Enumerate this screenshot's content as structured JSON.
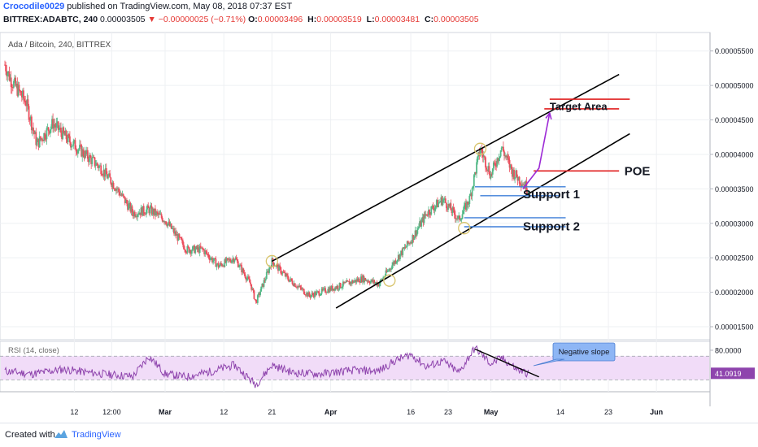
{
  "header": {
    "author": "Crocodile0029",
    "published": "published on TradingView.com, May 08, 2018 07:37 EST",
    "symbol": "BITTREX:ADABTC, 240",
    "last": "0.00003505",
    "change": "▼ −0.00000025 (−0.71%)",
    "open_label": "O:",
    "open": "0.00003496",
    "high_label": "H:",
    "high": "0.00003519",
    "low_label": "L:",
    "low": "0.00003481",
    "close_label": "C:",
    "close": "0.00003505"
  },
  "footer": {
    "created": "Created with",
    "brand": "TradingView"
  },
  "colors": {
    "up": "#53b987",
    "down": "#eb4d5c",
    "channel": "#000000",
    "support": "#3e7fd8",
    "target": "#e01f1f",
    "arrow": "#9d2ad6",
    "rsi_line": "#8e44ad",
    "rsi_band": "#f1dcf8",
    "grid": "#eef0f3",
    "callout": "#8eb6f5",
    "highlight_circle": "#d8c36a"
  },
  "chart_data": [
    {
      "type": "candlestick",
      "title": "Ada / Bitcoin, 240, BITTREX",
      "ylim": [
        1.5e-05,
        5.65e-05
      ],
      "x_range": [
        "2018-01-30",
        "2018-06-06"
      ],
      "yticks": [
        "0.00005500",
        "0.00005000",
        "0.00004500",
        "0.00004000",
        "0.00003500",
        "0.00003000",
        "0.00002500",
        "0.00002000",
        "0.00001500"
      ],
      "xticks": [
        {
          "date": "2018-02-12",
          "label": "12"
        },
        {
          "date": "2018-02-19",
          "label": "12:00"
        },
        {
          "date": "2018-03-01",
          "label": "Mar"
        },
        {
          "date": "2018-03-12",
          "label": "12"
        },
        {
          "date": "2018-03-21",
          "label": "21"
        },
        {
          "date": "2018-04-01",
          "label": "Apr"
        },
        {
          "date": "2018-04-16",
          "label": "16"
        },
        {
          "date": "2018-04-23",
          "label": "23"
        },
        {
          "date": "2018-05-01",
          "label": "May"
        },
        {
          "date": "2018-05-14",
          "label": "14"
        },
        {
          "date": "2018-05-23",
          "label": "23"
        },
        {
          "date": "2018-06-01",
          "label": "Jun"
        }
      ],
      "price_path": [
        [
          "2018-01-30",
          5.3e-05
        ],
        [
          "2018-01-31",
          5.1e-05
        ],
        [
          "2018-02-03",
          4.75e-05
        ],
        [
          "2018-02-05",
          4.15e-05
        ],
        [
          "2018-02-08",
          4.45e-05
        ],
        [
          "2018-02-11",
          4.2e-05
        ],
        [
          "2018-02-14",
          4e-05
        ],
        [
          "2018-02-17",
          3.8e-05
        ],
        [
          "2018-02-20",
          3.5e-05
        ],
        [
          "2018-02-23",
          3.15e-05
        ],
        [
          "2018-02-26",
          3.2e-05
        ],
        [
          "2018-03-01",
          3.05e-05
        ],
        [
          "2018-03-05",
          2.62e-05
        ],
        [
          "2018-03-08",
          2.62e-05
        ],
        [
          "2018-03-11",
          2.38e-05
        ],
        [
          "2018-03-14",
          2.5e-05
        ],
        [
          "2018-03-17",
          2.12e-05
        ],
        [
          "2018-03-18",
          1.85e-05
        ],
        [
          "2018-03-21",
          2.45e-05
        ],
        [
          "2018-03-24",
          2.2e-05
        ],
        [
          "2018-03-28",
          1.95e-05
        ],
        [
          "2018-04-03",
          2.1e-05
        ],
        [
          "2018-04-07",
          2.2e-05
        ],
        [
          "2018-04-10",
          2.12e-05
        ],
        [
          "2018-04-13",
          2.45e-05
        ],
        [
          "2018-04-16",
          2.75e-05
        ],
        [
          "2018-04-19",
          3.15e-05
        ],
        [
          "2018-04-22",
          3.35e-05
        ],
        [
          "2018-04-25",
          3.05e-05
        ],
        [
          "2018-04-27",
          3.35e-05
        ],
        [
          "2018-04-29",
          4.08e-05
        ],
        [
          "2018-05-01",
          3.7e-05
        ],
        [
          "2018-05-03",
          4.1e-05
        ],
        [
          "2018-05-05",
          3.75e-05
        ],
        [
          "2018-05-08",
          3.5e-05
        ]
      ],
      "annotations": {
        "channel_upper": [
          [
            "2018-03-21",
            2.45e-05
          ],
          [
            "2018-05-25",
            5.16e-05
          ]
        ],
        "channel_lower": [
          [
            "2018-04-02",
            1.77e-05
          ],
          [
            "2018-05-27",
            4.3e-05
          ]
        ],
        "target_lines": [
          {
            "from": "2018-05-12",
            "to": "2018-05-27",
            "price": 4.8e-05
          },
          {
            "from": "2018-05-11",
            "to": "2018-05-25",
            "price": 4.66e-05
          }
        ],
        "poe_line": {
          "from": "2018-05-09",
          "to": "2018-05-25",
          "price": 3.76e-05
        },
        "support_lines": [
          {
            "from": "2018-04-28",
            "to": "2018-05-15",
            "price": 3.53e-05
          },
          {
            "from": "2018-04-29",
            "to": "2018-05-14",
            "price": 3.4e-05
          },
          {
            "from": "2018-04-26",
            "to": "2018-05-15",
            "price": 3.08e-05
          },
          {
            "from": "2018-04-26",
            "to": "2018-05-15",
            "price": 2.95e-05
          }
        ],
        "arrow": [
          [
            "2018-05-07",
            3.5e-05
          ],
          [
            "2018-05-10",
            3.8e-05
          ],
          [
            "2018-05-12",
            4.6e-05
          ]
        ],
        "circles": [
          [
            "2018-03-21",
            2.45e-05
          ],
          [
            "2018-04-12",
            2.17e-05
          ],
          [
            "2018-04-26",
            2.93e-05
          ],
          [
            "2018-04-29",
            4.08e-05
          ]
        ],
        "labels": {
          "target": "Target Area",
          "poe": "POE",
          "support1": "Support 1",
          "support2": "Support 2"
        }
      }
    },
    {
      "type": "line",
      "title": "RSI (14, close)",
      "ylim": [
        10,
        95
      ],
      "bands": [
        70,
        30
      ],
      "ytick": "80.0000",
      "last_value": "41.0919",
      "path": [
        [
          "2018-01-30",
          45
        ],
        [
          "2018-02-04",
          40
        ],
        [
          "2018-02-10",
          48
        ],
        [
          "2018-02-15",
          42
        ],
        [
          "2018-02-20",
          38
        ],
        [
          "2018-02-23",
          36
        ],
        [
          "2018-02-26",
          70
        ],
        [
          "2018-03-01",
          40
        ],
        [
          "2018-03-05",
          35
        ],
        [
          "2018-03-10",
          45
        ],
        [
          "2018-03-14",
          55
        ],
        [
          "2018-03-17",
          30
        ],
        [
          "2018-03-18",
          22
        ],
        [
          "2018-03-21",
          55
        ],
        [
          "2018-03-25",
          42
        ],
        [
          "2018-03-30",
          40
        ],
        [
          "2018-04-05",
          46
        ],
        [
          "2018-04-10",
          45
        ],
        [
          "2018-04-13",
          62
        ],
        [
          "2018-04-16",
          73
        ],
        [
          "2018-04-19",
          52
        ],
        [
          "2018-04-22",
          62
        ],
        [
          "2018-04-25",
          42
        ],
        [
          "2018-04-28",
          84
        ],
        [
          "2018-05-01",
          57
        ],
        [
          "2018-05-03",
          67
        ],
        [
          "2018-05-06",
          47
        ],
        [
          "2018-05-08",
          41
        ]
      ],
      "trendline": [
        [
          "2018-04-28",
          82
        ],
        [
          "2018-05-10",
          35
        ]
      ],
      "callout": "Negative slope"
    }
  ]
}
